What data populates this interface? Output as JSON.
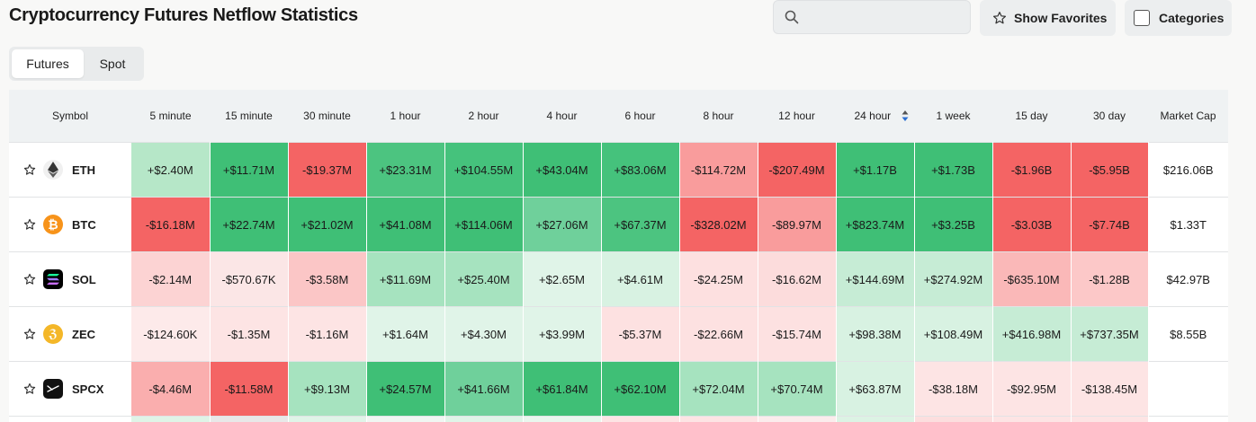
{
  "header": {
    "title": "Cryptocurrency Futures Netflow Statistics",
    "search_placeholder": "",
    "show_favorites_label": "Show Favorites",
    "categories_label": "Categories"
  },
  "tabs": [
    {
      "label": "Futures",
      "active": true
    },
    {
      "label": "Spot",
      "active": false
    }
  ],
  "table": {
    "columns": [
      "Symbol",
      "5 minute",
      "15 minute",
      "30 minute",
      "1 hour",
      "2 hour",
      "4 hour",
      "6 hour",
      "8 hour",
      "12 hour",
      "24 hour",
      "1 week",
      "15 day",
      "30 day",
      "Market Cap"
    ],
    "sorted_column": "24 hour",
    "rows": [
      {
        "symbol": "ETH",
        "icon": "ethereum-icon",
        "values": [
          "+$2.40M",
          "+$11.71M",
          "-$19.37M",
          "+$23.31M",
          "+$104.55M",
          "+$43.04M",
          "+$83.06M",
          "-$114.72M",
          "-$207.49M",
          "+$1.17B",
          "+$1.73B",
          "-$1.96B",
          "-$5.95B"
        ],
        "market_cap": "$216.06B"
      },
      {
        "symbol": "BTC",
        "icon": "bitcoin-icon",
        "values": [
          "-$16.18M",
          "+$22.74M",
          "+$21.02M",
          "+$41.08M",
          "+$114.06M",
          "+$27.06M",
          "+$67.37M",
          "-$328.02M",
          "-$89.97M",
          "+$823.74M",
          "+$3.25B",
          "-$3.03B",
          "-$7.74B"
        ],
        "market_cap": "$1.33T"
      },
      {
        "symbol": "SOL",
        "icon": "solana-icon",
        "values": [
          "-$2.14M",
          "-$570.67K",
          "-$3.58M",
          "+$11.69M",
          "+$25.40M",
          "+$2.65M",
          "+$4.61M",
          "-$24.25M",
          "-$16.62M",
          "+$144.69M",
          "+$274.92M",
          "-$635.10M",
          "-$1.28B"
        ],
        "market_cap": "$42.97B"
      },
      {
        "symbol": "ZEC",
        "icon": "zcash-icon",
        "values": [
          "-$124.60K",
          "-$1.35M",
          "-$1.16M",
          "+$1.64M",
          "+$4.30M",
          "+$3.99M",
          "-$5.37M",
          "-$22.66M",
          "-$15.74M",
          "+$98.38M",
          "+$108.49M",
          "+$416.98M",
          "+$737.35M"
        ],
        "market_cap": "$8.55B"
      },
      {
        "symbol": "SPCX",
        "icon": "spacex-icon",
        "values": [
          "-$4.46M",
          "-$11.58M",
          "+$9.13M",
          "+$24.57M",
          "+$41.66M",
          "+$61.84M",
          "+$62.10M",
          "+$72.04M",
          "+$70.74M",
          "+$63.87M",
          "-$38.18M",
          "-$92.95M",
          "-$138.45M"
        ],
        "market_cap": ""
      }
    ],
    "cell_colors": [
      [
        "#b6e7c8",
        "#3fbf76",
        "#f46464",
        "#4cc480",
        "#45c27c",
        "#3fbf76",
        "#45c27c",
        "#f99c9c",
        "#f46464",
        "#3fbf76",
        "#3fbf76",
        "#f46464",
        "#f46464"
      ],
      [
        "#f46464",
        "#3fbf76",
        "#3fbf76",
        "#3fbf76",
        "#3fbf76",
        "#6fd09b",
        "#4cc480",
        "#f46464",
        "#f99c9c",
        "#3fbf76",
        "#3fbf76",
        "#f46464",
        "#f46464"
      ],
      [
        "#fcd3d3",
        "#fbe6e6",
        "#fbc6c6",
        "#a6e3bf",
        "#a6e3bf",
        "#e0f4e8",
        "#d8f2e2",
        "#fde0e0",
        "#fcdcdc",
        "#c6ecd5",
        "#c6ecd5",
        "#fab8b8",
        "#fcc8c8"
      ],
      [
        "#fdeaea",
        "#fde4e4",
        "#fde4e4",
        "#e0f4e8",
        "#e0f4e8",
        "#e0f4e8",
        "#fde1e1",
        "#fde1e1",
        "#fde1e1",
        "#d8f2e2",
        "#d8f2e2",
        "#c6ecd5",
        "#c6ecd5"
      ],
      [
        "#faaeae",
        "#f46464",
        "#a6e3bf",
        "#3fbf76",
        "#6fd09b",
        "#3fbf76",
        "#3fbf76",
        "#a6e3bf",
        "#a6e3bf",
        "#d8f2e2",
        "#fde4e4",
        "#fde4e4",
        "#fde4e4"
      ]
    ],
    "partial_row_colors": [
      "#dff4e7",
      "#e8e8e8",
      "#e0f4e8",
      "#f0f6f2",
      "#e0f4e8",
      "#e9f7ee",
      "#fde4e4",
      "#fde4e4",
      "#fbecec",
      "#dcf3e4",
      "#fcdede",
      "#fde4e4",
      "#fde4e4"
    ]
  }
}
